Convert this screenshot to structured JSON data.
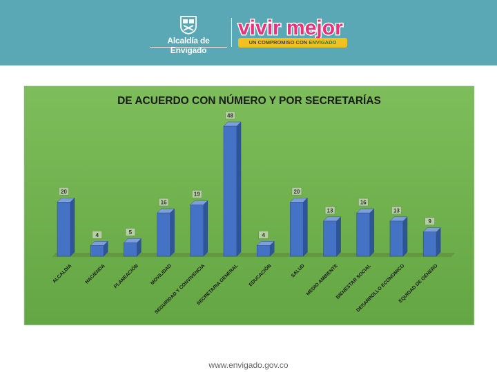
{
  "header": {
    "org_name": "Alcaldía de Envigado",
    "slogan_prefix": "UN COMPROMISO CON",
    "slogan_strong": "ENVIGADO",
    "brand_logo": "vivir mejor",
    "colors": {
      "header_bg": "#5aa8b6",
      "slogan_bg": "#f1c21f"
    }
  },
  "chart_data": {
    "type": "bar",
    "title": "DE ACUERDO CON NÚMERO Y POR SECRETARÍAS",
    "categories": [
      "ALCALDIA",
      "HACIENDA",
      "PLANEACIÓN",
      "MOVILIDAD",
      "SEGURIDAD Y CONVIVENCIA",
      "SECRETARIA GENERAL",
      "EDUCACIÓN",
      "SALUD",
      "MEDIO AMBIENTE",
      "BIENESTAR SOCIAL",
      "DESARROLLO ECONOMICO",
      "EQUIDAD DE GÉNERO"
    ],
    "values": [
      20,
      4,
      5,
      16,
      19,
      48,
      4,
      20,
      13,
      16,
      13,
      9
    ],
    "ylim": [
      0,
      48
    ],
    "grid": false,
    "legend": "none",
    "style": "3d-column",
    "colors": {
      "bar": "#4472c4",
      "background": "#70b04e"
    }
  },
  "footer": {
    "url": "www.envigado.gov.co"
  }
}
